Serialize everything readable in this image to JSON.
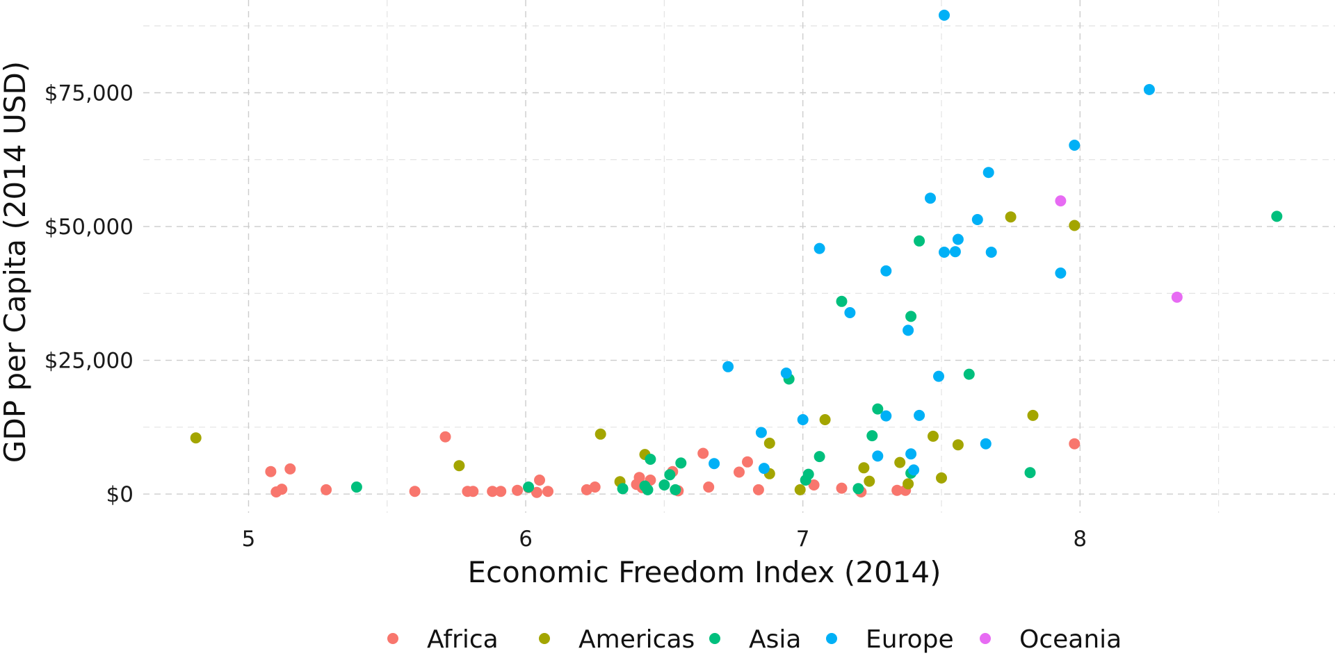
{
  "chart_data": {
    "type": "scatter",
    "title": "",
    "xlabel": "Economic Freedom Index (2014)",
    "ylabel": "GDP per Capita (2014 USD)",
    "xlim": [
      4.62,
      8.92
    ],
    "ylim": [
      -3500,
      90000
    ],
    "x_ticks": [
      5,
      6,
      7,
      8
    ],
    "x_tick_labels": [
      "5",
      "6",
      "7",
      "8"
    ],
    "x_minor_ticks": [
      5.5,
      6.5,
      7.5,
      8.5
    ],
    "y_ticks": [
      0,
      25000,
      50000,
      75000
    ],
    "y_tick_labels": [
      "$0",
      "$25,000",
      "$50,000",
      "$75,000"
    ],
    "y_minor_ticks": [
      12500,
      37500,
      62500,
      87500
    ],
    "grid": true,
    "legend_position": "bottom",
    "series": [
      {
        "name": "Africa",
        "color": "#F8766D",
        "points": [
          [
            5.08,
            4200
          ],
          [
            5.1,
            400
          ],
          [
            5.12,
            900
          ],
          [
            5.15,
            4700
          ],
          [
            5.28,
            800
          ],
          [
            5.6,
            500
          ],
          [
            5.71,
            10700
          ],
          [
            5.79,
            500
          ],
          [
            5.81,
            500
          ],
          [
            5.88,
            500
          ],
          [
            5.91,
            500
          ],
          [
            5.97,
            700
          ],
          [
            6.01,
            1200
          ],
          [
            6.04,
            300
          ],
          [
            6.05,
            2600
          ],
          [
            6.08,
            500
          ],
          [
            6.22,
            800
          ],
          [
            6.25,
            1300
          ],
          [
            6.4,
            1800
          ],
          [
            6.41,
            3100
          ],
          [
            6.42,
            1200
          ],
          [
            6.45,
            2600
          ],
          [
            6.53,
            4200
          ],
          [
            6.55,
            600
          ],
          [
            6.64,
            7600
          ],
          [
            6.66,
            1300
          ],
          [
            6.77,
            4100
          ],
          [
            6.8,
            6000
          ],
          [
            6.84,
            800
          ],
          [
            7.04,
            1700
          ],
          [
            7.14,
            1100
          ],
          [
            7.21,
            400
          ],
          [
            7.34,
            700
          ],
          [
            7.37,
            700
          ],
          [
            7.98,
            9400
          ]
        ]
      },
      {
        "name": "Americas",
        "color": "#A3A500",
        "points": [
          [
            4.81,
            10500
          ],
          [
            5.76,
            5300
          ],
          [
            6.27,
            11200
          ],
          [
            6.34,
            2300
          ],
          [
            6.43,
            7400
          ],
          [
            6.88,
            9500
          ],
          [
            6.88,
            3800
          ],
          [
            6.99,
            800
          ],
          [
            7.08,
            13900
          ],
          [
            7.22,
            4900
          ],
          [
            7.24,
            2400
          ],
          [
            7.35,
            5900
          ],
          [
            7.38,
            1900
          ],
          [
            7.47,
            10800
          ],
          [
            7.5,
            3000
          ],
          [
            7.56,
            9200
          ],
          [
            7.75,
            51800
          ],
          [
            7.83,
            14700
          ],
          [
            7.98,
            50200
          ]
        ]
      },
      {
        "name": "Asia",
        "color": "#00BF7D",
        "points": [
          [
            5.39,
            1300
          ],
          [
            6.01,
            1300
          ],
          [
            6.35,
            1000
          ],
          [
            6.43,
            1500
          ],
          [
            6.44,
            800
          ],
          [
            6.45,
            6500
          ],
          [
            6.5,
            1700
          ],
          [
            6.52,
            3600
          ],
          [
            6.54,
            800
          ],
          [
            6.56,
            5800
          ],
          [
            6.95,
            21500
          ],
          [
            7.01,
            2600
          ],
          [
            7.02,
            3700
          ],
          [
            7.06,
            7000
          ],
          [
            7.14,
            36000
          ],
          [
            7.2,
            1000
          ],
          [
            7.25,
            10900
          ],
          [
            7.27,
            15900
          ],
          [
            7.39,
            33200
          ],
          [
            7.39,
            3900
          ],
          [
            7.42,
            47300
          ],
          [
            7.6,
            22400
          ],
          [
            7.82,
            4000
          ],
          [
            8.71,
            51900
          ]
        ]
      },
      {
        "name": "Europe",
        "color": "#00B0F6",
        "points": [
          [
            6.68,
            5700
          ],
          [
            6.73,
            23800
          ],
          [
            6.85,
            11500
          ],
          [
            6.86,
            4800
          ],
          [
            6.94,
            22600
          ],
          [
            7.0,
            13900
          ],
          [
            7.06,
            45900
          ],
          [
            7.17,
            33900
          ],
          [
            7.27,
            7100
          ],
          [
            7.3,
            14600
          ],
          [
            7.3,
            41700
          ],
          [
            7.38,
            30600
          ],
          [
            7.39,
            7500
          ],
          [
            7.4,
            4500
          ],
          [
            7.42,
            14700
          ],
          [
            7.46,
            55300
          ],
          [
            7.49,
            22000
          ],
          [
            7.51,
            45200
          ],
          [
            7.51,
            89500
          ],
          [
            7.55,
            45300
          ],
          [
            7.56,
            47600
          ],
          [
            7.63,
            51300
          ],
          [
            7.66,
            9400
          ],
          [
            7.67,
            60100
          ],
          [
            7.68,
            45200
          ],
          [
            7.93,
            41300
          ],
          [
            7.98,
            65200
          ],
          [
            8.25,
            75600
          ]
        ]
      },
      {
        "name": "Oceania",
        "color": "#E76BF3",
        "points": [
          [
            7.93,
            54800
          ],
          [
            8.35,
            36800
          ]
        ]
      }
    ]
  }
}
